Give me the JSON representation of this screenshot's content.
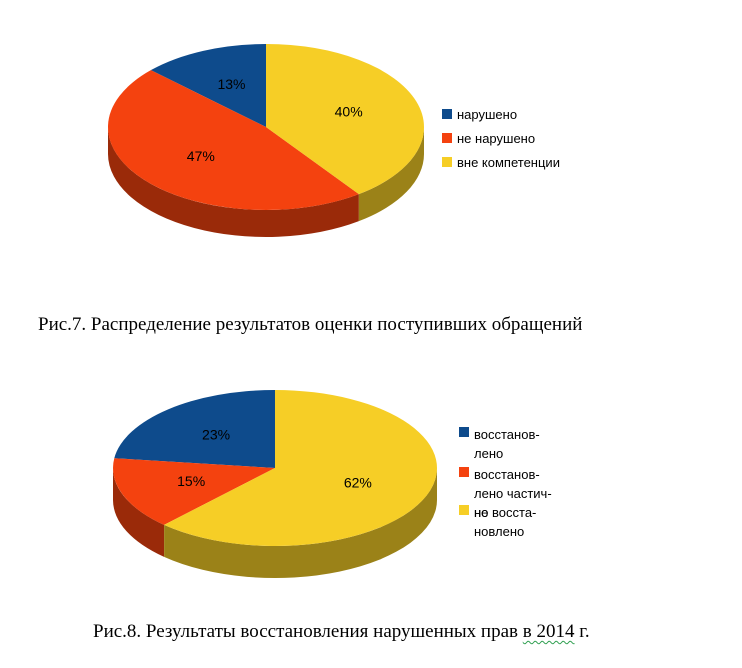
{
  "page": {
    "background": "#ffffff"
  },
  "grammar_underline_color": "#2e9e4f",
  "chart_data": [
    {
      "type": "pie",
      "style": "3d",
      "title": "",
      "caption": "Рис.7. Распределение результатов оценки поступивших обращений",
      "categories": [
        "нарушено",
        "не нарушено",
        "вне компетенции"
      ],
      "values": [
        13,
        47,
        40
      ],
      "unit": "%",
      "data_labels": [
        "13%",
        "47%",
        "40%"
      ],
      "colors": [
        "#0e4b8c",
        "#f4420f",
        "#f6ce26"
      ],
      "legend_position": "right",
      "legend": [
        {
          "label": "нарушено",
          "lines": [
            "нарушено"
          ]
        },
        {
          "label": "не нарушено",
          "lines": [
            "не нарушено"
          ]
        },
        {
          "label": "вне компетенции",
          "lines": [
            "вне компетенции"
          ]
        }
      ]
    },
    {
      "type": "pie",
      "style": "3d",
      "title": "",
      "caption": "Рис.8. Результаты восстановления нарушенных прав в 2014 г.",
      "caption_parts": {
        "before": "Рис.8. Результаты восстановления нарушенных прав ",
        "underlined": "в 2014",
        "after": " г."
      },
      "categories": [
        "восстановлено",
        "восстановлено частично",
        "не восстановлено"
      ],
      "values": [
        23,
        15,
        62
      ],
      "unit": "%",
      "data_labels": [
        "23%",
        "15%",
        "62%"
      ],
      "colors": [
        "#0e4b8c",
        "#f4420f",
        "#f6ce26"
      ],
      "legend_position": "right",
      "legend": [
        {
          "label": "восстановлено",
          "lines": [
            "восстанов-",
            "лено"
          ]
        },
        {
          "label": "восстановлено частично",
          "lines": [
            "восстанов-",
            "лено частич-",
            "но"
          ]
        },
        {
          "label": "не восстановлено",
          "lines": [
            "не восста-",
            "новлено"
          ]
        }
      ]
    }
  ]
}
